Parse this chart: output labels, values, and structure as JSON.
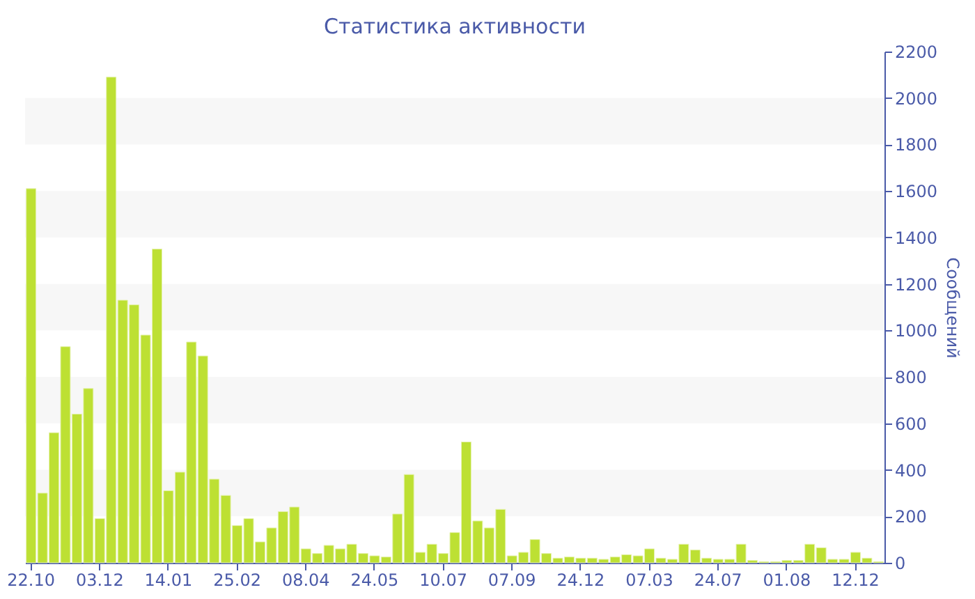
{
  "chart_data": {
    "type": "bar",
    "title": "Статистика активности",
    "ylabel": "Сообщений",
    "categories": [
      "22.10",
      null,
      null,
      null,
      null,
      null,
      "03.12",
      null,
      null,
      null,
      null,
      null,
      "14.01",
      null,
      null,
      null,
      null,
      null,
      "25.02",
      null,
      null,
      null,
      null,
      null,
      "08.04",
      null,
      null,
      null,
      null,
      null,
      "24.05",
      null,
      null,
      null,
      null,
      null,
      "10.07",
      null,
      null,
      null,
      null,
      null,
      "07.09",
      null,
      null,
      null,
      null,
      null,
      "24.12",
      null,
      null,
      null,
      null,
      null,
      "07.03",
      null,
      null,
      null,
      null,
      null,
      "24.07",
      null,
      null,
      null,
      null,
      null,
      "01.08",
      null,
      null,
      null,
      null,
      null,
      "12.12",
      null,
      null
    ],
    "values": [
      1610,
      300,
      560,
      930,
      640,
      750,
      190,
      2090,
      1130,
      1110,
      980,
      1350,
      310,
      390,
      950,
      890,
      360,
      290,
      160,
      190,
      90,
      150,
      220,
      240,
      60,
      40,
      75,
      60,
      80,
      40,
      30,
      25,
      210,
      380,
      45,
      80,
      40,
      130,
      520,
      180,
      150,
      230,
      30,
      45,
      100,
      40,
      20,
      25,
      20,
      20,
      15,
      25,
      35,
      30,
      60,
      20,
      15,
      80,
      55,
      20,
      15,
      15,
      80,
      10,
      5,
      5,
      10,
      10,
      80,
      65,
      15,
      15,
      45,
      20,
      5
    ],
    "color": "#bde033",
    "ylim": [
      0,
      2200
    ],
    "yticks": [
      0,
      200,
      400,
      600,
      800,
      1000,
      1200,
      1400,
      1600,
      1800,
      2000,
      2200
    ],
    "bands": [
      {
        "axis": "y",
        "from": 200,
        "to": 400,
        "color": "#f7f7f7"
      },
      {
        "axis": "y",
        "from": 600,
        "to": 800,
        "color": "#f7f7f7"
      },
      {
        "axis": "y",
        "from": 1000,
        "to": 1200,
        "color": "#f7f7f7"
      },
      {
        "axis": "y",
        "from": 1400,
        "to": 1600,
        "color": "#f7f7f7"
      },
      {
        "axis": "y",
        "from": 1800,
        "to": 2000,
        "color": "#f7f7f7"
      }
    ]
  }
}
